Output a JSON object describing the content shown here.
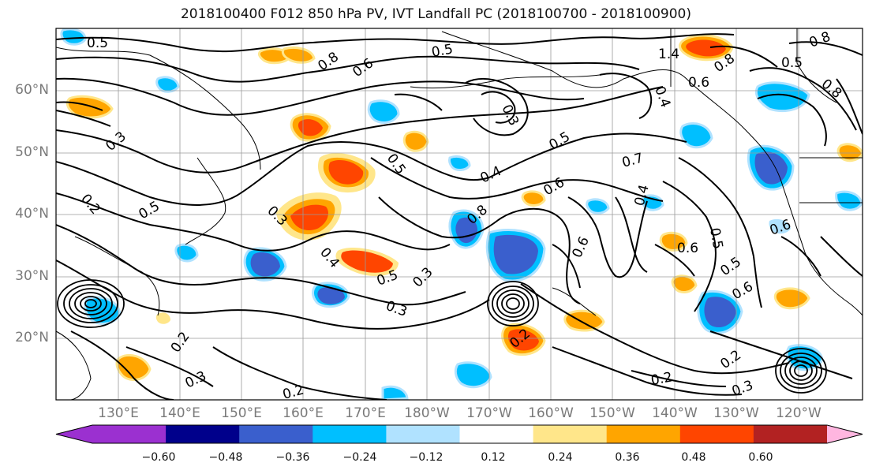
{
  "title": "2018100400 F012 850 hPa PV, IVT Landfall PC (2018100700 - 2018100900)",
  "map": {
    "latitude_labels": [
      "60°N",
      "50°N",
      "40°N",
      "30°N",
      "20°N"
    ],
    "longitude_labels": [
      "130°E",
      "140°E",
      "150°E",
      "160°E",
      "170°E",
      "180°W",
      "170°W",
      "160°W",
      "150°W",
      "140°W",
      "130°W",
      "120°W"
    ],
    "contour_labels": [
      "0.5",
      "0.8",
      "0.6",
      "0.5",
      "0.4",
      "0.3",
      "0.2",
      "0.5",
      "0.4",
      "0.6",
      "0.8",
      "0.3",
      "0.5",
      "0.3",
      "0.2",
      "0.3",
      "0.2",
      "0.2",
      "0.3",
      "0.6",
      "0.7",
      "0.4",
      "0.6",
      "0.5",
      "0.6",
      "0.5",
      "0.6",
      "0.2",
      "0.3",
      "0.8",
      "0.5",
      "1.4",
      "0.8",
      "0.6",
      "0.4",
      "0.5",
      "0.8",
      "0.3",
      "0.2",
      "0.5"
    ]
  },
  "colorbar": {
    "tick_labels": [
      "−0.60",
      "−0.48",
      "−0.36",
      "−0.24",
      "−0.12",
      "0.12",
      "0.24",
      "0.36",
      "0.48",
      "0.60"
    ],
    "colors": [
      "#9b30d0",
      "#00008b",
      "#3a5fcd",
      "#00bfff",
      "#b0e2ff",
      "#ffffff",
      "#ffe68a",
      "#ffa500",
      "#ff4500",
      "#b22222",
      "#ff82ab",
      "#ffb6e0"
    ]
  },
  "fill_colors": {
    "neg1": "#b0e2ff",
    "neg2": "#00bfff",
    "neg3": "#3a5fcd",
    "pos1": "#ffe68a",
    "pos2": "#ffa500",
    "pos3": "#ff4500"
  }
}
